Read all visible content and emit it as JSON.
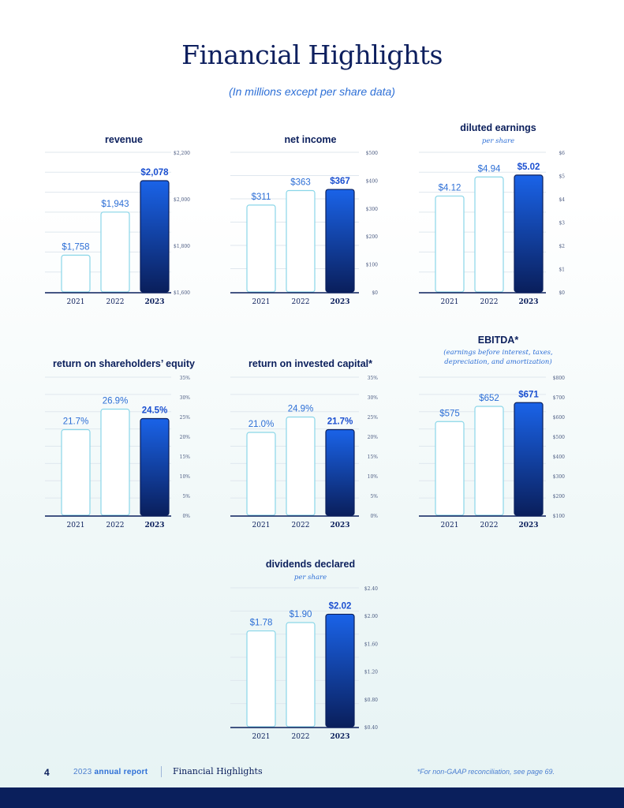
{
  "page": {
    "title": "Financial Highlights",
    "subtitle": "(In millions except per share data)"
  },
  "colors": {
    "navy": "#0a1f5c",
    "accent_blue": "#1a63e8",
    "outline_cyan": "#8ad6e8",
    "gridline": "#dfe7ee"
  },
  "chart_data": [
    {
      "id": "revenue",
      "type": "bar",
      "title": "revenue",
      "subtitle": "",
      "categories": [
        "2021",
        "2022",
        "2023"
      ],
      "values": [
        1758,
        1943,
        2078
      ],
      "labels": [
        "$1,758",
        "$1,943",
        "$2,078"
      ],
      "ylim": [
        1600,
        2200
      ],
      "yticks": [
        "$1,600",
        "$1,800",
        "$2,000",
        "$2,200"
      ],
      "grid_lines": 7
    },
    {
      "id": "net-income",
      "type": "bar",
      "title": "net income",
      "subtitle": "",
      "categories": [
        "2021",
        "2022",
        "2023"
      ],
      "values": [
        311,
        363,
        367
      ],
      "labels": [
        "$311",
        "$363",
        "$367"
      ],
      "ylim": [
        0,
        500
      ],
      "yticks": [
        "$0",
        "$100",
        "$200",
        "$300",
        "$400",
        "$500"
      ],
      "grid_lines": 6
    },
    {
      "id": "diluted-earnings",
      "type": "bar",
      "title": "diluted earnings",
      "subtitle": "per share",
      "categories": [
        "2021",
        "2022",
        "2023"
      ],
      "values": [
        4.12,
        4.94,
        5.02
      ],
      "labels": [
        "$4.12",
        "$4.94",
        "$5.02"
      ],
      "ylim": [
        0,
        6
      ],
      "yticks": [
        "$0",
        "$1",
        "$2",
        "$3",
        "$4",
        "$5",
        "$6"
      ],
      "grid_lines": 7
    },
    {
      "id": "roe",
      "type": "bar",
      "title": "return on shareholders’ equity",
      "subtitle": "",
      "categories": [
        "2021",
        "2022",
        "2023"
      ],
      "values": [
        21.7,
        26.9,
        24.5
      ],
      "labels": [
        "21.7%",
        "26.9%",
        "24.5%"
      ],
      "ylim": [
        0,
        35
      ],
      "yticks": [
        "0%",
        "5%",
        "10%",
        "15%",
        "20%",
        "25%",
        "30%",
        "35%"
      ],
      "grid_lines": 8
    },
    {
      "id": "roic",
      "type": "bar",
      "title": "return on invested capital*",
      "subtitle": "",
      "categories": [
        "2021",
        "2022",
        "2023"
      ],
      "values": [
        21.0,
        24.9,
        21.7
      ],
      "labels": [
        "21.0%",
        "24.9%",
        "21.7%"
      ],
      "ylim": [
        0,
        35
      ],
      "yticks": [
        "0%",
        "5%",
        "10%",
        "15%",
        "20%",
        "25%",
        "30%",
        "35%"
      ],
      "grid_lines": 8
    },
    {
      "id": "ebitda",
      "type": "bar",
      "title": "EBITDA*",
      "subtitle": "(earnings before interest, taxes,",
      "subtitle2": "depreciation, and amortization)",
      "categories": [
        "2021",
        "2022",
        "2023"
      ],
      "values": [
        575,
        652,
        671
      ],
      "labels": [
        "$575",
        "$652",
        "$671"
      ],
      "ylim": [
        100,
        800
      ],
      "yticks": [
        "$100",
        "$200",
        "$300",
        "$400",
        "$500",
        "$600",
        "$700",
        "$800"
      ],
      "grid_lines": 8
    },
    {
      "id": "dividends",
      "type": "bar",
      "title": "dividends declared",
      "subtitle": "per share",
      "categories": [
        "2021",
        "2022",
        "2023"
      ],
      "values": [
        1.78,
        1.9,
        2.02
      ],
      "labels": [
        "$1.78",
        "$1.90",
        "$2.02"
      ],
      "ylim": [
        0.4,
        2.4
      ],
      "yticks": [
        "$0.40",
        "$0.80",
        "$1.20",
        "$1.60",
        "$2.00",
        "$2.40"
      ],
      "grid_lines": 6
    }
  ],
  "footer": {
    "page_number": "4",
    "report_year": "2023",
    "report_label": "annual report",
    "section": "Financial Highlights",
    "note": "*For non-GAAP reconciliation, see page 69."
  }
}
